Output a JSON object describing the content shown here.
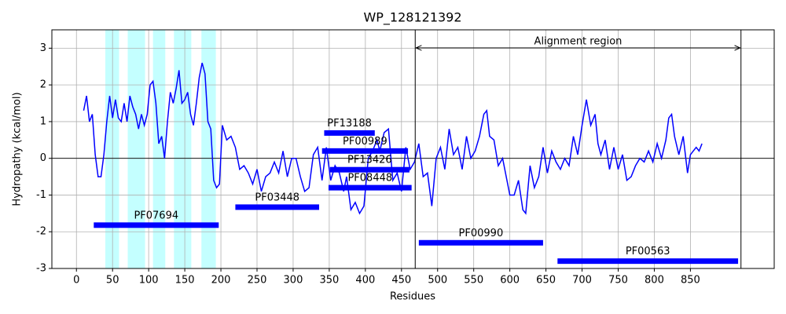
{
  "chart_data": {
    "type": "line",
    "title": "WP_128121392",
    "x_label": "Residues",
    "y_label": "Hydropathy (kcal/mol)",
    "color": "#0000ff",
    "grid": true,
    "xlim": [
      -34,
      966
    ],
    "ylim": [
      -3,
      3.5
    ],
    "xticks": [
      0,
      50,
      100,
      150,
      200,
      250,
      300,
      350,
      400,
      450,
      500,
      550,
      600,
      650,
      700,
      750,
      800,
      850
    ],
    "yticks": [
      -3,
      -2,
      -1,
      0,
      1,
      2,
      3
    ],
    "x": [
      10,
      14,
      18,
      22,
      26,
      30,
      34,
      38,
      42,
      46,
      50,
      54,
      58,
      62,
      66,
      70,
      74,
      78,
      82,
      86,
      90,
      94,
      98,
      102,
      106,
      110,
      114,
      118,
      122,
      126,
      130,
      134,
      138,
      142,
      146,
      150,
      154,
      158,
      162,
      166,
      170,
      174,
      178,
      182,
      186,
      190,
      194,
      198,
      202,
      208,
      214,
      220,
      226,
      232,
      238,
      244,
      250,
      256,
      262,
      268,
      274,
      280,
      286,
      292,
      298,
      304,
      310,
      316,
      322,
      328,
      334,
      340,
      346,
      352,
      358,
      364,
      370,
      374,
      380,
      386,
      392,
      398,
      404,
      410,
      416,
      420,
      426,
      432,
      438,
      444,
      450,
      456,
      462,
      468,
      474,
      480,
      486,
      492,
      498,
      504,
      510,
      516,
      522,
      528,
      534,
      540,
      546,
      552,
      558,
      564,
      568,
      572,
      578,
      584,
      590,
      596,
      600,
      606,
      612,
      618,
      622,
      628,
      634,
      640,
      646,
      652,
      658,
      664,
      670,
      676,
      682,
      688,
      694,
      700,
      706,
      712,
      718,
      722,
      726,
      732,
      738,
      744,
      750,
      756,
      762,
      768,
      774,
      780,
      786,
      792,
      798,
      804,
      810,
      816,
      820,
      824,
      828,
      834,
      840,
      846,
      850,
      854,
      858,
      862,
      866
    ],
    "values": [
      1.3,
      1.7,
      1.0,
      1.2,
      0.1,
      -0.5,
      -0.5,
      0.1,
      1.0,
      1.7,
      1.1,
      1.6,
      1.1,
      1.0,
      1.5,
      1.0,
      1.7,
      1.4,
      1.2,
      0.8,
      1.2,
      0.9,
      1.2,
      2.0,
      2.1,
      1.5,
      0.4,
      0.6,
      0.0,
      1.0,
      1.8,
      1.5,
      1.9,
      2.4,
      1.5,
      1.6,
      1.8,
      1.2,
      0.9,
      1.5,
      2.2,
      2.6,
      2.3,
      1.0,
      0.8,
      -0.6,
      -0.8,
      -0.7,
      0.9,
      0.5,
      0.6,
      0.3,
      -0.3,
      -0.2,
      -0.4,
      -0.7,
      -0.3,
      -0.9,
      -0.5,
      -0.4,
      -0.1,
      -0.4,
      0.2,
      -0.5,
      0.0,
      0.0,
      -0.5,
      -0.9,
      -0.8,
      0.1,
      0.3,
      -0.6,
      0.3,
      -0.6,
      -0.2,
      -0.4,
      -0.9,
      -0.5,
      -1.4,
      -1.2,
      -1.5,
      -1.3,
      0.0,
      0.2,
      0.5,
      0.2,
      0.7,
      0.8,
      -0.6,
      -0.4,
      -0.9,
      0.3,
      -0.3,
      -0.1,
      0.4,
      -0.5,
      -0.4,
      -1.3,
      0.0,
      0.3,
      -0.3,
      0.8,
      0.1,
      0.3,
      -0.3,
      0.6,
      0.0,
      0.2,
      0.6,
      1.2,
      1.3,
      0.6,
      0.5,
      -0.2,
      0.0,
      -0.6,
      -1.0,
      -1.0,
      -0.6,
      -1.4,
      -1.5,
      -0.2,
      -0.8,
      -0.5,
      0.3,
      -0.4,
      0.2,
      -0.1,
      -0.3,
      0.0,
      -0.2,
      0.6,
      0.1,
      0.9,
      1.6,
      0.9,
      1.2,
      0.4,
      0.1,
      0.5,
      -0.3,
      0.3,
      -0.3,
      0.1,
      -0.6,
      -0.5,
      -0.2,
      0.0,
      -0.1,
      0.2,
      -0.1,
      0.4,
      0.0,
      0.5,
      1.1,
      1.2,
      0.6,
      0.1,
      0.6,
      -0.4,
      0.1,
      0.2,
      0.3,
      0.2,
      0.4
    ],
    "highlight_color": "#c4ffff",
    "highlights": [
      [
        40,
        59
      ],
      [
        71,
        95
      ],
      [
        106,
        123
      ],
      [
        135,
        159
      ],
      [
        173,
        193
      ]
    ],
    "domain_color": "#0000ff",
    "domains": [
      {
        "name": "PF07694",
        "start": 24,
        "end": 197,
        "y": -1.82
      },
      {
        "name": "PF03448",
        "start": 220,
        "end": 336,
        "y": -1.33
      },
      {
        "name": "PF13188",
        "start": 343,
        "end": 413,
        "y": 0.69
      },
      {
        "name": "PF00989",
        "start": 340,
        "end": 459,
        "y": 0.2
      },
      {
        "name": "PF13426",
        "start": 351,
        "end": 461,
        "y": -0.31
      },
      {
        "name": "PF08448",
        "start": 349,
        "end": 464,
        "y": -0.8
      },
      {
        "name": "PF00990",
        "start": 474,
        "end": 646,
        "y": -2.3
      },
      {
        "name": "PF00563",
        "start": 666,
        "end": 916,
        "y": -2.8
      }
    ],
    "alignment": {
      "label": "Alignment region",
      "start": 469,
      "end": 920
    }
  }
}
